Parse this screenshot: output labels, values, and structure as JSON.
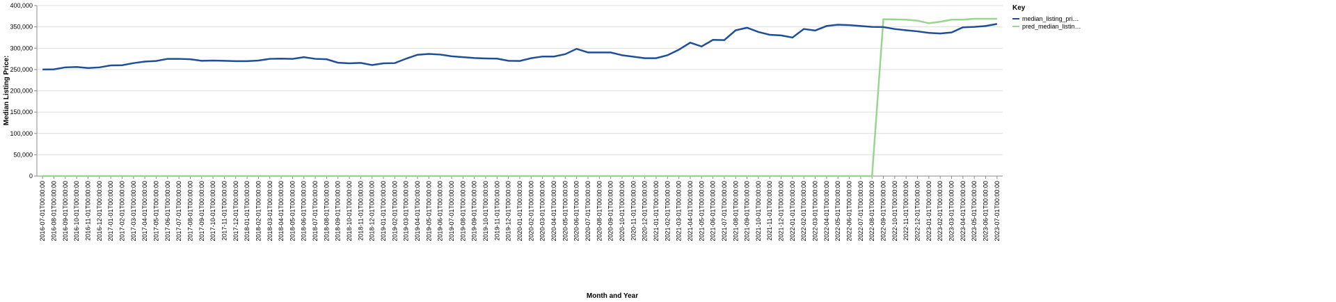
{
  "chart_data": {
    "type": "line",
    "x_label": "Month and Year",
    "y_label": "Median Listing Price:",
    "legend_title": "Key",
    "legend": "right",
    "grid": true,
    "categories": [
      "2016-07-01T00:00:00",
      "2016-08-01T00:00:00",
      "2016-09-01T00:00:00",
      "2016-10-01T00:00:00",
      "2016-11-01T00:00:00",
      "2016-12-01T00:00:00",
      "2017-01-01T00:00:00",
      "2017-02-01T00:00:00",
      "2017-03-01T00:00:00",
      "2017-04-01T00:00:00",
      "2017-05-01T00:00:00",
      "2017-06-01T00:00:00",
      "2017-07-01T00:00:00",
      "2017-08-01T00:00:00",
      "2017-09-01T00:00:00",
      "2017-10-01T00:00:00",
      "2017-11-01T00:00:00",
      "2017-12-01T00:00:00",
      "2018-01-01T00:00:00",
      "2018-02-01T00:00:00",
      "2018-03-01T00:00:00",
      "2018-04-01T00:00:00",
      "2018-05-01T00:00:00",
      "2018-06-01T00:00:00",
      "2018-07-01T00:00:00",
      "2018-08-01T00:00:00",
      "2018-09-01T00:00:00",
      "2018-10-01T00:00:00",
      "2018-11-01T00:00:00",
      "2018-12-01T00:00:00",
      "2019-01-01T00:00:00",
      "2019-02-01T00:00:00",
      "2019-03-01T00:00:00",
      "2019-04-01T00:00:00",
      "2019-05-01T00:00:00",
      "2019-06-01T00:00:00",
      "2019-07-01T00:00:00",
      "2019-08-01T00:00:00",
      "2019-09-01T00:00:00",
      "2019-10-01T00:00:00",
      "2019-11-01T00:00:00",
      "2019-12-01T00:00:00",
      "2020-01-01T00:00:00",
      "2020-02-01T00:00:00",
      "2020-03-01T00:00:00",
      "2020-04-01T00:00:00",
      "2020-05-01T00:00:00",
      "2020-06-01T00:00:00",
      "2020-07-01T00:00:00",
      "2020-08-01T00:00:00",
      "2020-09-01T00:00:00",
      "2020-10-01T00:00:00",
      "2020-11-01T00:00:00",
      "2020-12-01T00:00:00",
      "2021-01-01T00:00:00",
      "2021-02-01T00:00:00",
      "2021-03-01T00:00:00",
      "2021-04-01T00:00:00",
      "2021-05-01T00:00:00",
      "2021-06-01T00:00:00",
      "2021-07-01T00:00:00",
      "2021-08-01T00:00:00",
      "2021-09-01T00:00:00",
      "2021-10-01T00:00:00",
      "2021-11-01T00:00:00",
      "2021-12-01T00:00:00",
      "2022-01-01T00:00:00",
      "2022-02-01T00:00:00",
      "2022-03-01T00:00:00",
      "2022-04-01T00:00:00",
      "2022-05-01T00:00:00",
      "2022-06-01T00:00:00",
      "2022-07-01T00:00:00",
      "2022-08-01T00:00:00",
      "2022-09-01T00:00:00",
      "2022-10-01T00:00:00",
      "2022-11-01T00:00:00",
      "2022-12-01T00:00:00",
      "2023-01-01T00:00:00",
      "2023-02-01T00:00:00",
      "2023-03-01T00:00:00",
      "2023-04-01T00:00:00",
      "2023-05-01T00:00:00",
      "2023-06-01T00:00:00",
      "2023-07-01T00:00:00"
    ],
    "series": [
      {
        "name": "median_listing_pri…",
        "color": "#1f4e99",
        "values": [
          250000,
          250500,
          255000,
          256000,
          253500,
          255000,
          259500,
          260000,
          265000,
          268500,
          270000,
          275000,
          275000,
          274000,
          270500,
          271000,
          270500,
          269500,
          269500,
          271000,
          275000,
          275500,
          275000,
          279000,
          275000,
          274000,
          266000,
          264500,
          265500,
          260500,
          264500,
          265000,
          275500,
          284500,
          286500,
          285000,
          281000,
          279000,
          277000,
          276000,
          275500,
          270500,
          270000,
          276500,
          280500,
          280500,
          286000,
          298500,
          290000,
          290000,
          290000,
          283500,
          280000,
          276500,
          276500,
          283500,
          296500,
          313000,
          304000,
          319500,
          319000,
          342000,
          348000,
          338000,
          331500,
          330000,
          325000,
          345000,
          341500,
          352000,
          355000,
          354000,
          352000,
          350000,
          349500,
          345000,
          342000,
          339500,
          336000,
          334500,
          337000,
          349000,
          350000,
          352000,
          357000
        ]
      },
      {
        "name": "pred_median_listin…",
        "color": "#98d68f",
        "values": [
          0,
          0,
          0,
          0,
          0,
          0,
          0,
          0,
          0,
          0,
          0,
          0,
          0,
          0,
          0,
          0,
          0,
          0,
          0,
          0,
          0,
          0,
          0,
          0,
          0,
          0,
          0,
          0,
          0,
          0,
          0,
          0,
          0,
          0,
          0,
          0,
          0,
          0,
          0,
          0,
          0,
          0,
          0,
          0,
          0,
          0,
          0,
          0,
          0,
          0,
          0,
          0,
          0,
          0,
          0,
          0,
          0,
          0,
          0,
          0,
          0,
          0,
          0,
          0,
          0,
          0,
          0,
          0,
          0,
          0,
          0,
          0,
          0,
          0,
          368000,
          367500,
          367000,
          364500,
          358500,
          362000,
          367000,
          367000,
          369000,
          369000,
          369000
        ]
      }
    ],
    "ylim": [
      0,
      400000
    ],
    "yticks": [
      {
        "value": 0,
        "label": "0"
      },
      {
        "value": 50000,
        "label": "50,000"
      },
      {
        "value": 100000,
        "label": "100,000"
      },
      {
        "value": 150000,
        "label": "150,000"
      },
      {
        "value": 200000,
        "label": "200,000"
      },
      {
        "value": 250000,
        "label": "250,000"
      },
      {
        "value": 300000,
        "label": "300,000"
      },
      {
        "value": 350000,
        "label": "350,000"
      },
      {
        "value": 400000,
        "label": "400,000"
      }
    ]
  }
}
